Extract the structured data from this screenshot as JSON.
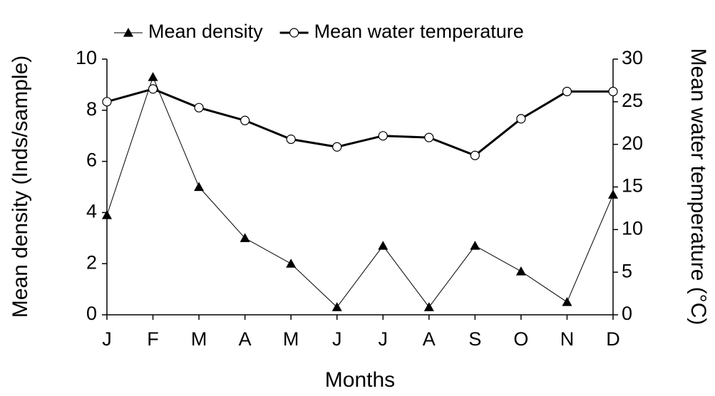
{
  "chart_data": {
    "type": "line",
    "x_label": "Months",
    "y_label": "Mean density (Inds/sample)",
    "y2_label": "Mean water temperature (°C)",
    "categories": [
      "J",
      "F",
      "M",
      "A",
      "M",
      "J",
      "J",
      "A",
      "S",
      "O",
      "N",
      "D"
    ],
    "series": [
      {
        "name": "Mean density",
        "color": "#000000",
        "marker": "triangle",
        "line_width": 1,
        "axis": "y",
        "values": [
          3.9,
          9.3,
          5.0,
          3.0,
          2.0,
          0.3,
          2.7,
          0.3,
          2.7,
          1.7,
          0.5,
          4.7
        ]
      },
      {
        "name": "Mean water temperature",
        "color": "#000000",
        "marker": "circle",
        "line_width": 3,
        "axis": "y2",
        "values": [
          25.0,
          26.5,
          24.3,
          22.8,
          20.6,
          19.7,
          21.0,
          20.8,
          18.7,
          23.0,
          26.2,
          26.2
        ]
      }
    ],
    "ylim": [
      0,
      10
    ],
    "yticks": [
      0,
      2,
      4,
      6,
      8,
      10
    ],
    "y2lim": [
      0,
      30
    ],
    "y2ticks": [
      0,
      5,
      10,
      15,
      20,
      25,
      30
    ],
    "legend": "top",
    "grid": false
  }
}
